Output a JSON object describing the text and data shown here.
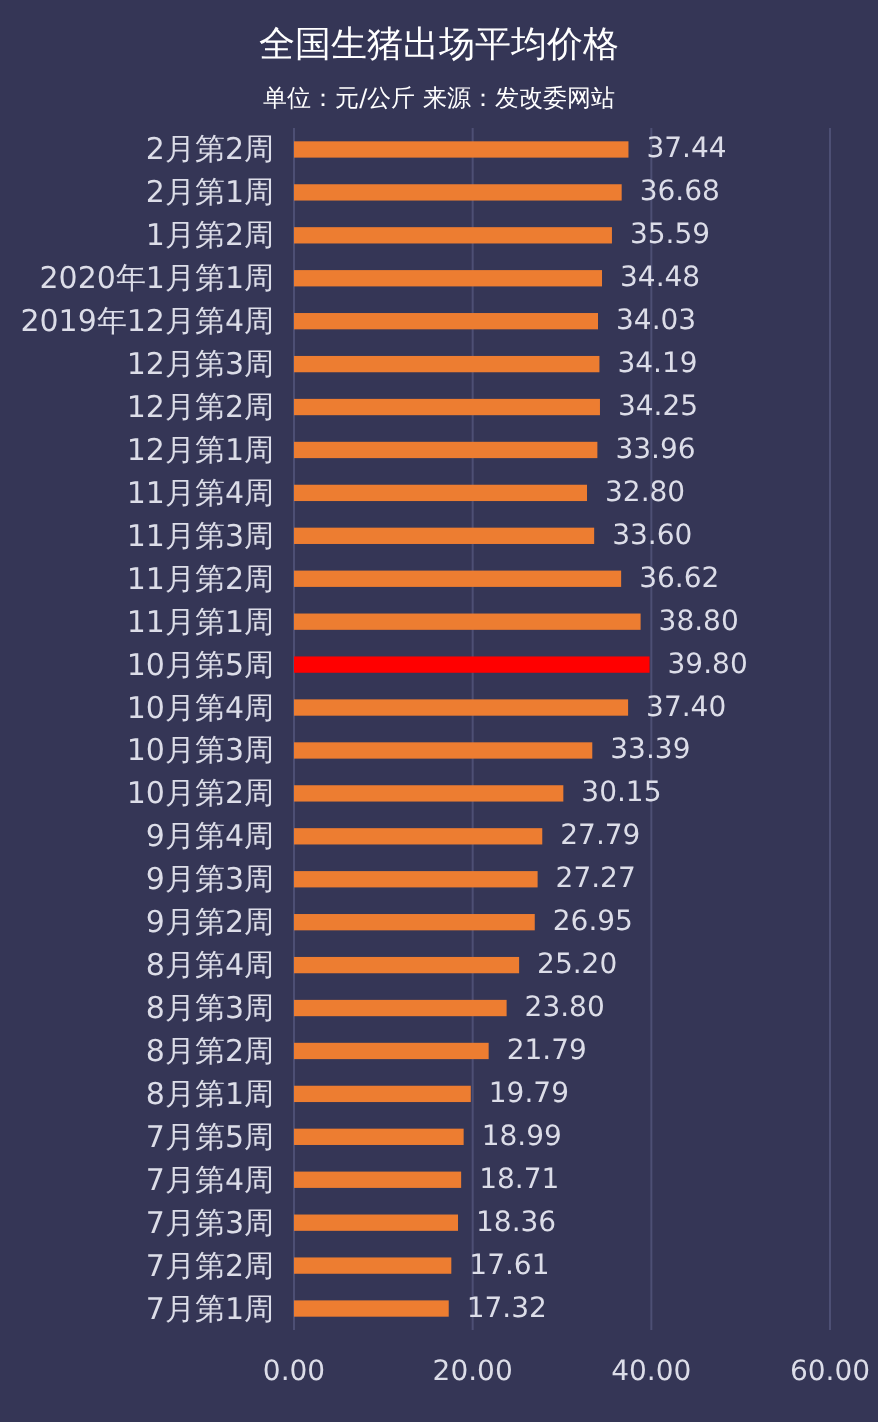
{
  "chart_data": {
    "type": "bar",
    "orientation": "horizontal",
    "title": "全国生猪出场平均价格",
    "subtitle": "单位：元/公斤 来源：发改委网站",
    "categories": [
      "2月第2周",
      "2月第1周",
      "1月第2周",
      "2020年1月第1周",
      "2019年12月第4周",
      "12月第3周",
      "12月第2周",
      "12月第1周",
      "11月第4周",
      "11月第3周",
      "11月第2周",
      "11月第1周",
      "10月第5周",
      "10月第4周",
      "10月第3周",
      "10月第2周",
      "9月第4周",
      "9月第3周",
      "9月第2周",
      "8月第4周",
      "8月第3周",
      "8月第2周",
      "8月第1周",
      "7月第5周",
      "7月第4周",
      "7月第3周",
      "7月第2周",
      "7月第1周"
    ],
    "values": [
      37.44,
      36.68,
      35.59,
      34.48,
      34.03,
      34.19,
      34.25,
      33.96,
      32.8,
      33.6,
      36.62,
      38.8,
      39.8,
      37.4,
      33.39,
      30.15,
      27.79,
      27.27,
      26.95,
      25.2,
      23.8,
      21.79,
      19.79,
      18.99,
      18.71,
      18.36,
      17.61,
      17.32
    ],
    "value_labels": [
      "37.44",
      "36.68",
      "35.59",
      "34.48",
      "34.03",
      "34.19",
      "34.25",
      "33.96",
      "32.80",
      "33.60",
      "36.62",
      "38.80",
      "39.80",
      "37.40",
      "33.39",
      "30.15",
      "27.79",
      "27.27",
      "26.95",
      "25.20",
      "23.80",
      "21.79",
      "19.79",
      "18.99",
      "18.71",
      "18.36",
      "17.61",
      "17.32"
    ],
    "colors": [
      "#ed7d31",
      "#ed7d31",
      "#ed7d31",
      "#ed7d31",
      "#ed7d31",
      "#ed7d31",
      "#ed7d31",
      "#ed7d31",
      "#ed7d31",
      "#ed7d31",
      "#ed7d31",
      "#ed7d31",
      "#ff0000",
      "#ed7d31",
      "#ed7d31",
      "#ed7d31",
      "#ed7d31",
      "#ed7d31",
      "#ed7d31",
      "#ed7d31",
      "#ed7d31",
      "#ed7d31",
      "#ed7d31",
      "#ed7d31",
      "#ed7d31",
      "#ed7d31",
      "#ed7d31",
      "#ed7d31"
    ],
    "xlim": [
      0,
      60
    ],
    "xticks": [
      {
        "value": 0,
        "label": "0.00"
      },
      {
        "value": 20,
        "label": "20.00"
      },
      {
        "value": 40,
        "label": "40.00"
      },
      {
        "value": 60,
        "label": "60.00"
      }
    ],
    "grid": "x"
  }
}
